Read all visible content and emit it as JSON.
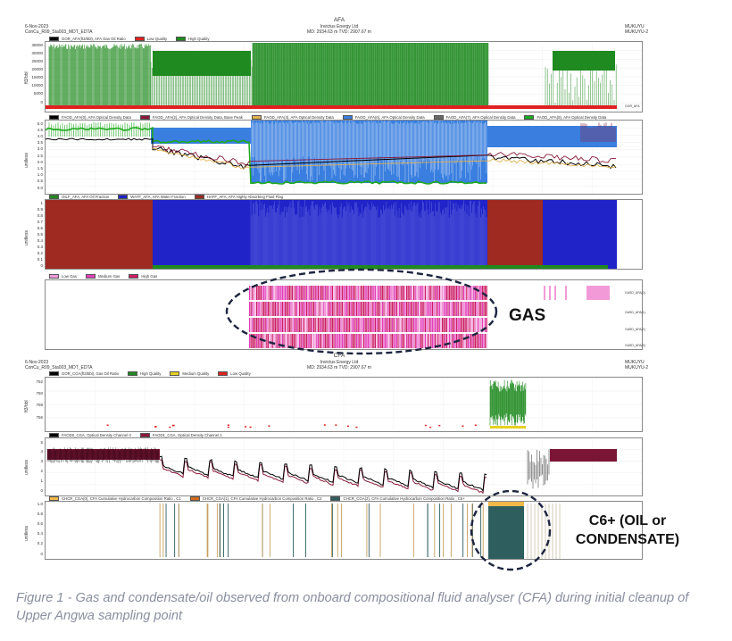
{
  "afa_header": {
    "date": "6-Nov-2023",
    "well": "ConCu_R09_Sta003_MDT_EDTA",
    "title": "AFA",
    "company": "Invictus Energy Ltd",
    "depth": "MD: 2934.63 m   TVD: 2907.67 m",
    "site": "MUKUYU",
    "site2": "MUKUYU-2"
  },
  "cfa_header": {
    "date": "6-Nov-2023",
    "well": "ConCu_R09_Sta003_MDT_EDTA",
    "title": "CFA",
    "company": "Invictus Energy Ltd",
    "depth": "MD: 2934.63 m   TVD: 2907.67 m",
    "site": "MUKUYU",
    "site2": "MUKUYU-2"
  },
  "annotations": {
    "gas": "GAS",
    "c6_line1": "C6+ (OIL or",
    "c6_line2": "CONDENSATE)"
  },
  "caption": {
    "text": "Figure 1 - Gas and condensate/oil observed from onboard compositional fluid analyser (CFA) during initial cleanup of Upper Angwa sampling point"
  },
  "colors": {
    "gor_green": "#1f8a1f",
    "low_quality_red": "#e02020",
    "optical_blue": "#3a7fe0",
    "optical_maroon": "#8b1a3a",
    "oil_fraction": "#9e2a22",
    "water_fraction": "#1f23c8",
    "high_gas": "#cc1f66",
    "medium_gas": "#e23fb8",
    "low_gas": "#f29ad8",
    "c6_teal": "#2e5e5e",
    "c6_yellow": "#f2b84a"
  },
  "chart_data": [
    {
      "type": "line",
      "name_key": "afa_gor",
      "ylabel": "ft3/bbl",
      "yticks": [
        "35000",
        "30000",
        "25000",
        "20000",
        "15000",
        "10000",
        "5000",
        "0"
      ],
      "legend": [
        {
          "label": "GOR_AFA(ft3/bbl), AFA Gas Oil Ratio",
          "color": "#000000"
        },
        {
          "label": "Low Quality",
          "color": "#e02020"
        },
        {
          "label": "High Quality",
          "color": "#1f8a1f"
        }
      ],
      "right_label": "GOR_AFA",
      "ylim": [
        0,
        37000
      ]
    },
    {
      "type": "line",
      "name_key": "afa_optical",
      "ylabel": "unitless",
      "yticks": [
        "5.0",
        "4.5",
        "4.0",
        "3.5",
        "3.0",
        "2.5",
        "2.0",
        "1.5",
        "1.0",
        "0.5",
        "0.0"
      ],
      "legend": [
        {
          "label": "FAOD_AFA(0), AFA Optical Density Data",
          "color": "#000000"
        },
        {
          "label": "FAOD_AFA(2), AFA Optical Density Data, Base Peak",
          "color": "#8b1a3a"
        },
        {
          "label": "FAOD_AFA(4), AFA Optical Density Data",
          "color": "#e0b050"
        },
        {
          "label": "FAOD_AFA(6), AFA Optical Density Data",
          "color": "#3a7fe0"
        },
        {
          "label": "FAOD_AFA(7), AFA Optical Density Data",
          "color": "#6a6a6a"
        },
        {
          "label": "FAOD_AFA(8), AFA Optical Density Data",
          "color": "#1faa1f"
        }
      ],
      "ylim": [
        0,
        5
      ]
    },
    {
      "type": "area",
      "name_key": "afa_fraction",
      "ylabel": "unitless",
      "yticks": [
        "1",
        "0.9",
        "0.8",
        "0.7",
        "0.6",
        "0.5",
        "0.4",
        "0.3",
        "0.2",
        "0.1",
        "0"
      ],
      "legend": [
        {
          "label": "OILF_AFA, AFA Oil Fraction",
          "color": "#1f8a1f"
        },
        {
          "label": "WATF_AFA, AFA Water Fraction",
          "color": "#1f23c8"
        },
        {
          "label": "HAFF_AFA, AFA Highly Absorbing Fluid Flag",
          "color": "#9e2a22"
        }
      ],
      "ylim": [
        0,
        1
      ]
    },
    {
      "type": "heatmap",
      "name_key": "afa_gas",
      "legend": [
        {
          "label": "Low Gas",
          "color": "#f29ad8"
        },
        {
          "label": "Medium Gas",
          "color": "#e23fb8"
        },
        {
          "label": "High Gas",
          "color": "#cc1f66"
        }
      ],
      "right_labels": [
        "GASD_AFA(0)",
        "GASD_AFA(1)",
        "GASD_AFA(2)",
        "GASD_AFA(3)"
      ]
    },
    {
      "type": "line",
      "name_key": "cfa_gor",
      "ylabel": "ft3/bbl",
      "yticks": [
        "762",
        "760",
        "758",
        "756"
      ],
      "legend": [
        {
          "label": "GOR_CGA(ft3/bbl), Gas Oil Ratio",
          "color": "#000000"
        },
        {
          "label": "High Quality",
          "color": "#1f8a1f"
        },
        {
          "label": "Medium Quality",
          "color": "#e8d020"
        },
        {
          "label": "Low Quality",
          "color": "#e02020"
        }
      ],
      "ylim": [
        754,
        763
      ]
    },
    {
      "type": "line",
      "name_key": "cfa_optical",
      "ylabel": "unitless",
      "yticks": [
        "5",
        "4",
        "3",
        "2",
        "1",
        "0"
      ],
      "legend": [
        {
          "label": "FAOD0_CGA, Optical Density Channel 0",
          "color": "#000000"
        },
        {
          "label": "FAOD1_CGA, Optical Density Channel 1",
          "color": "#8b1a3a"
        }
      ],
      "ylim": [
        0,
        5
      ]
    },
    {
      "type": "area",
      "name_key": "cfa_composition",
      "ylabel": "unitless",
      "yticks": [
        "1.0",
        "0.8",
        "0.6",
        "0.4",
        "0.2",
        "0"
      ],
      "legend": [
        {
          "label": "CHCR_CGA(0), CFA Cumulative Hydrocarbon Composition Ratio , C1",
          "color": "#f2b84a"
        },
        {
          "label": "CHCR_CGA(1), CFA Cumulative Hydrocarbon Composition Ratio , C2",
          "color": "#d26a20"
        },
        {
          "label": "CHCR_CGA(2), CFA Cumulative Hydrocarbon Composition Ratio , C6+",
          "color": "#2e5e5e"
        }
      ],
      "ylim": [
        0,
        1
      ]
    }
  ]
}
